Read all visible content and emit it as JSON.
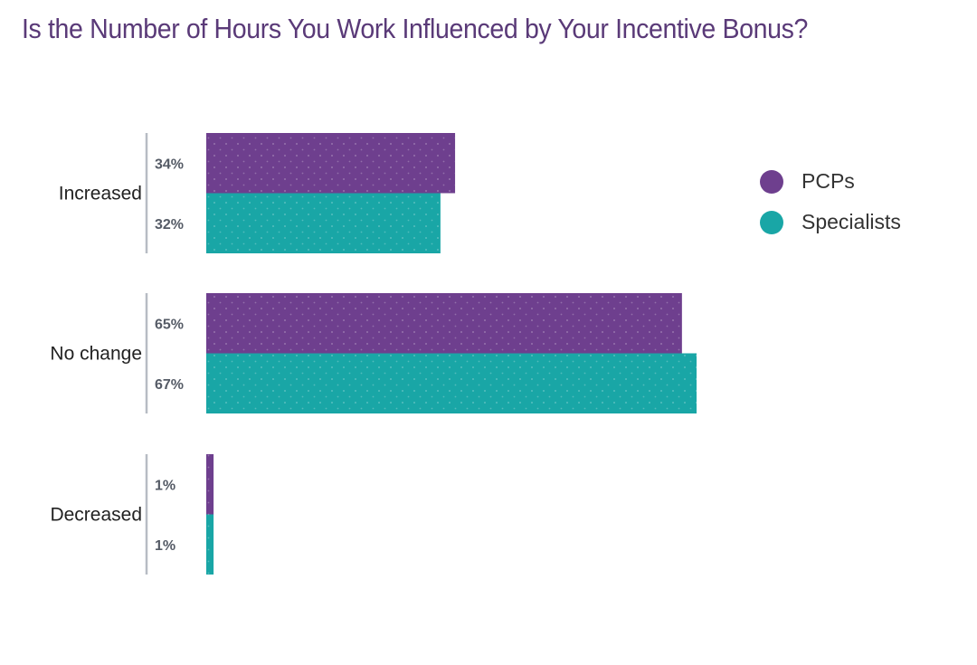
{
  "title": "Is the Number of Hours You Work Influenced by Your Incentive Bonus?",
  "colors": {
    "PCPs": "#6e3f8e",
    "Specialists": "#19a6a6",
    "title": "#5a3a78"
  },
  "legend": [
    {
      "name": "PCPs",
      "color": "#6e3f8e"
    },
    {
      "name": "Specialists",
      "color": "#19a6a6"
    }
  ],
  "chart_data": {
    "type": "bar",
    "orientation": "horizontal",
    "title": "Is the Number of Hours You Work Influenced by Your Incentive Bonus?",
    "categories": [
      "Increased",
      "No change",
      "Decreased"
    ],
    "series": [
      {
        "name": "PCPs",
        "values": [
          34,
          65,
          1
        ],
        "labels": [
          "34%",
          "65%",
          "1%"
        ]
      },
      {
        "name": "Specialists",
        "values": [
          32,
          67,
          1
        ],
        "labels": [
          "32%",
          "67%",
          "1%"
        ]
      }
    ],
    "xlim": [
      0,
      100
    ],
    "unit": "%",
    "grid": false,
    "legend_position": "right"
  }
}
